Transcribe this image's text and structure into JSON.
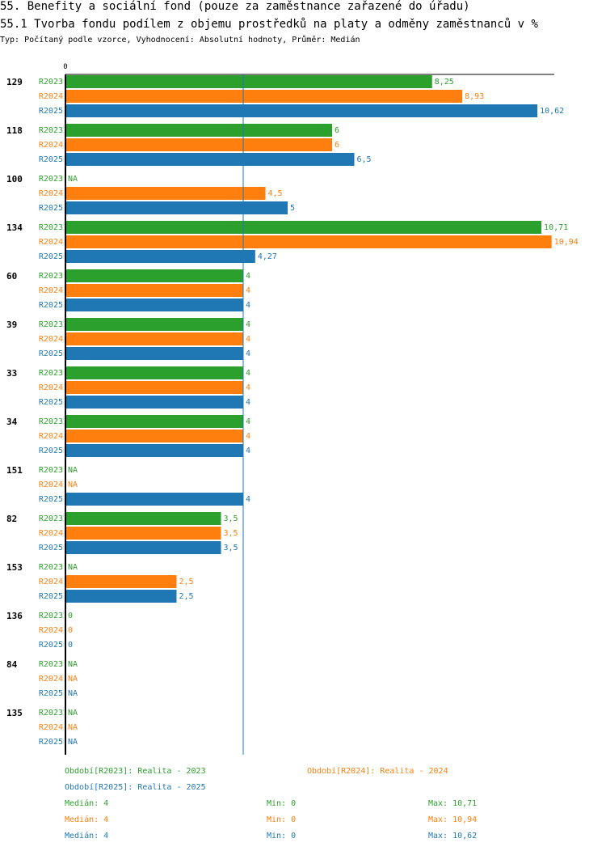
{
  "page": {
    "title": "55. Benefity a sociální fond (pouze za zaměstnance zařazené do úřadu)",
    "subtitle": "55.1 Tvorba fondu podílem z objemu prostředků na platy a odměny zaměstnanců v %",
    "type_line": "Typ: Počítaný podle vzorce, Vyhodnocení: Absolutní hodnoty, Průměr: Medián"
  },
  "chart_data": {
    "type": "bar",
    "orientation": "horizontal",
    "xlim": [
      0,
      11
    ],
    "x_tick_label": "0",
    "median_line_value": 4,
    "series_keys": [
      "R2023",
      "R2024",
      "R2025"
    ],
    "colors": {
      "R2023": "#2ca02c",
      "R2024": "#ff7f0e",
      "R2025": "#1f77b4"
    },
    "na_label": "NA",
    "groups": [
      {
        "id": "129",
        "values": [
          "8,25",
          "8,93",
          "10,62"
        ]
      },
      {
        "id": "118",
        "values": [
          "6",
          "6",
          "6,5"
        ]
      },
      {
        "id": "100",
        "values": [
          "NA",
          "4,5",
          "5"
        ]
      },
      {
        "id": "134",
        "values": [
          "10,71",
          "10,94",
          "4,27"
        ]
      },
      {
        "id": "60",
        "values": [
          "4",
          "4",
          "4"
        ]
      },
      {
        "id": "39",
        "values": [
          "4",
          "4",
          "4"
        ]
      },
      {
        "id": "33",
        "values": [
          "4",
          "4",
          "4"
        ]
      },
      {
        "id": "34",
        "values": [
          "4",
          "4",
          "4"
        ]
      },
      {
        "id": "151",
        "values": [
          "NA",
          "NA",
          "4"
        ]
      },
      {
        "id": "82",
        "values": [
          "3,5",
          "3,5",
          "3,5"
        ]
      },
      {
        "id": "153",
        "values": [
          "NA",
          "2,5",
          "2,5"
        ]
      },
      {
        "id": "136",
        "values": [
          "0",
          "0",
          "0"
        ]
      },
      {
        "id": "84",
        "values": [
          "NA",
          "NA",
          "NA"
        ]
      },
      {
        "id": "135",
        "values": [
          "NA",
          "NA",
          "NA"
        ]
      }
    ]
  },
  "legend": {
    "periods": [
      {
        "label": "Období[R2023]: Realita - 2023",
        "color": "#2ca02c"
      },
      {
        "label": "Období[R2024]: Realita - 2024",
        "color": "#ff7f0e"
      },
      {
        "label": "Období[R2025]: Realita - 2025",
        "color": "#1f77b4"
      }
    ],
    "stats": [
      {
        "median": "Medián: 4",
        "min": "Min: 0",
        "max": "Max: 10,71",
        "color": "#2ca02c"
      },
      {
        "median": "Medián: 4",
        "min": "Min: 0",
        "max": "Max: 10,94",
        "color": "#ff7f0e"
      },
      {
        "median": "Medián: 4",
        "min": "Min: 0",
        "max": "Max: 10,62",
        "color": "#1f77b4"
      }
    ]
  }
}
